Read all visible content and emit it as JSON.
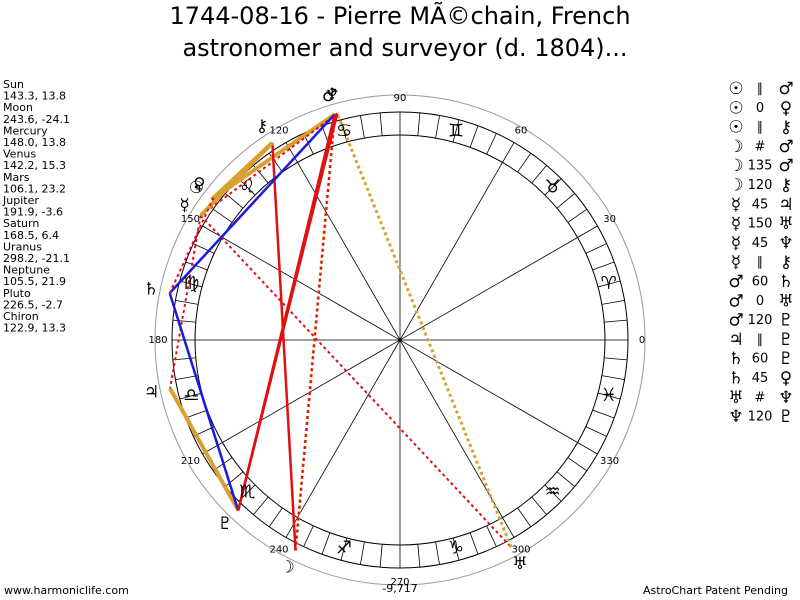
{
  "header": {
    "title_line_1": "1744-08-16 - Pierre MÃ©chain, French",
    "title_line_2": "astronomer and surveyor (d. 1804)..."
  },
  "planets": [
    {
      "name": "Sun",
      "glyph": "☉",
      "position": "143.3, 13.8"
    },
    {
      "name": "Moon",
      "glyph": "☽",
      "position": "243.6, -24.1"
    },
    {
      "name": "Mercury",
      "glyph": "☿",
      "position": "148.0, 13.8"
    },
    {
      "name": "Venus",
      "glyph": "♀",
      "position": "142.2, 15.3"
    },
    {
      "name": "Mars",
      "glyph": "♂",
      "position": "106.1, 23.2"
    },
    {
      "name": "Jupiter",
      "glyph": "♃",
      "position": "191.9, -3.6"
    },
    {
      "name": "Saturn",
      "glyph": "♄",
      "position": "168.5, 6.4"
    },
    {
      "name": "Uranus",
      "glyph": "♅",
      "position": "298.2, -21.1"
    },
    {
      "name": "Neptune",
      "glyph": "♆",
      "position": "105.5, 21.9"
    },
    {
      "name": "Pluto",
      "glyph": "♇",
      "position": "226.5, -2.7"
    },
    {
      "name": "Chiron",
      "glyph": "⚷",
      "position": "122.9, 13.3"
    }
  ],
  "aspects": [
    {
      "from": "☉",
      "aspect": "∥",
      "to": "♂"
    },
    {
      "from": "☉",
      "aspect": "0",
      "to": "♀"
    },
    {
      "from": "☉",
      "aspect": "∥",
      "to": "⚷"
    },
    {
      "from": "☽",
      "aspect": "#",
      "to": "♂"
    },
    {
      "from": "☽",
      "aspect": "135",
      "to": "♂"
    },
    {
      "from": "☽",
      "aspect": "120",
      "to": "⚷"
    },
    {
      "from": "☿",
      "aspect": "45",
      "to": "♃"
    },
    {
      "from": "☿",
      "aspect": "150",
      "to": "♅"
    },
    {
      "from": "☿",
      "aspect": "45",
      "to": "♆"
    },
    {
      "from": "☿",
      "aspect": "∥",
      "to": "⚷"
    },
    {
      "from": "♂",
      "aspect": "60",
      "to": "♄"
    },
    {
      "from": "♂",
      "aspect": "0",
      "to": "♅"
    },
    {
      "from": "♂",
      "aspect": "120",
      "to": "♇"
    },
    {
      "from": "♃",
      "aspect": "∥",
      "to": "♇"
    },
    {
      "from": "♄",
      "aspect": "60",
      "to": "♇"
    },
    {
      "from": "♄",
      "aspect": "45",
      "to": "♀"
    },
    {
      "from": "♅",
      "aspect": "#",
      "to": "♆"
    },
    {
      "from": "♆",
      "aspect": "120",
      "to": "♇"
    }
  ],
  "wheel": {
    "signs": [
      "♈",
      "♉",
      "♊",
      "♋",
      "♌",
      "♍",
      "♎",
      "♏",
      "♐",
      "♑",
      "♒",
      "♓"
    ],
    "degree_labels": [
      0,
      30,
      60,
      90,
      120,
      150,
      180,
      210,
      240,
      270,
      300,
      330
    ],
    "bottom_value": "-9,717"
  },
  "footer": {
    "left": "www.harmoniclife.com",
    "right": "AstroChart Patent Pending"
  }
}
